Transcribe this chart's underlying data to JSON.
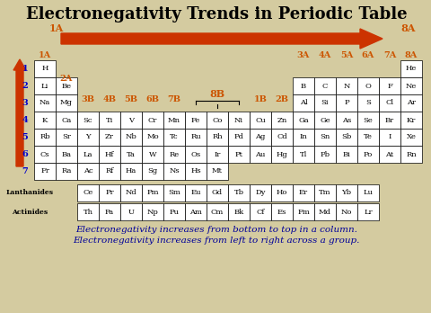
{
  "title": "Electronegativity Trends in Periodic Table",
  "title_fontsize": 13,
  "background_color": "#d4cba0",
  "arrow_color": "#cc3300",
  "group_label_color": "#cc5500",
  "period_label_color": "#0000cc",
  "footer_color": "#000099",
  "footer_line1": "Electronegativity increases from bottom to top in a column.",
  "footer_line2": "Electronegativity increases from left to right across a group.",
  "period_labels": [
    "1",
    "2",
    "3",
    "4",
    "5",
    "6",
    "7"
  ],
  "lanthanides": [
    "Ce",
    "Pr",
    "Nd",
    "Pm",
    "Sm",
    "Eu",
    "Gd",
    "Tb",
    "Dy",
    "Ho",
    "Er",
    "Tm",
    "Yb",
    "Lu"
  ],
  "actinides": [
    "Th",
    "Pa",
    "U",
    "Np",
    "Pu",
    "Am",
    "Cm",
    "Bk",
    "Cf",
    "Es",
    "Fm",
    "Md",
    "No",
    "Lr"
  ],
  "r4": [
    "K",
    "Ca",
    "Sc",
    "Ti",
    "V",
    "Cr",
    "Mn",
    "Fe",
    "Co",
    "Ni",
    "Cu",
    "Zn",
    "Ga",
    "Ge",
    "As",
    "Se",
    "Br",
    "Kr"
  ],
  "r5": [
    "Rb",
    "Sr",
    "Y",
    "Zr",
    "Nb",
    "Mo",
    "Tc",
    "Ru",
    "Rh",
    "Pd",
    "Ag",
    "Cd",
    "In",
    "Sn",
    "Sb",
    "Te",
    "I",
    "Xe"
  ],
  "r6": [
    "Cs",
    "Ba",
    "La",
    "Hf",
    "Ta",
    "W",
    "Re",
    "Os",
    "Ir",
    "Pt",
    "Au",
    "Hg",
    "Tl",
    "Pb",
    "Bi",
    "Po",
    "At",
    "Rn"
  ],
  "r7": [
    "Fr",
    "Ra",
    "Ac",
    "Rf",
    "Ha",
    "Sg",
    "Ns",
    "Hs",
    "Mt"
  ]
}
